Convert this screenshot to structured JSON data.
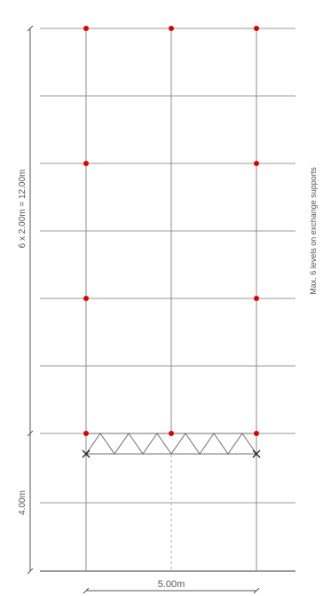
{
  "labels": {
    "vertical_dimension_upper": "6 x 2.00m = 12.00m",
    "vertical_dimension_lower": "4.00m",
    "horizontal_dimension": "5.00m",
    "side_note": "Max. 6 levels on exchange supports"
  },
  "colors": {
    "support_node": "#e00000",
    "grid_line": "#9a9a9a",
    "background": "#ffffff"
  }
}
